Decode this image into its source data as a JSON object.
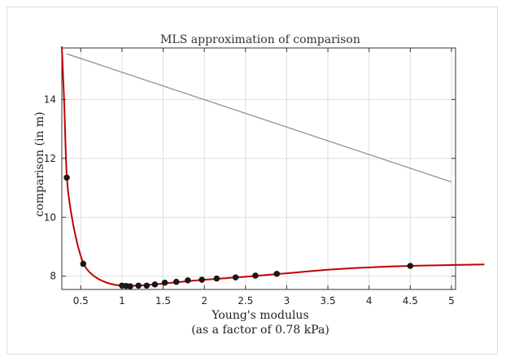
{
  "chart_data": {
    "type": "line",
    "title": "MLS approximation of comparison",
    "xlabel": "Young's modulus",
    "xlabel_line2": "(as a factor of 0.78 kPa)",
    "ylabel": "comparison (in m)",
    "xlim": [
      0.27,
      5.05
    ],
    "ylim": [
      7.55,
      15.75
    ],
    "xticks": [
      0.5,
      1,
      1.5,
      2,
      2.5,
      3,
      3.5,
      4,
      4.5,
      5
    ],
    "xtick_labels": [
      "0.5",
      "1",
      "1.5",
      "2",
      "2.5",
      "3",
      "3.5",
      "4",
      "4.5",
      "5"
    ],
    "yticks": [
      8,
      10,
      12,
      14
    ],
    "ytick_labels": [
      "8",
      "10",
      "12",
      "14"
    ],
    "grid": true,
    "series": [
      {
        "type": "line",
        "color": "#8a8a8a",
        "x": [
          0.33,
          5.0
        ],
        "y": [
          15.55,
          11.2
        ]
      },
      {
        "type": "line",
        "color": "#c00000",
        "x": [
          0.27,
          0.3,
          0.33,
          0.38,
          0.45,
          0.53,
          0.62,
          0.72,
          0.85,
          1.0,
          1.2,
          1.5,
          2.0,
          2.5,
          3.0,
          3.5,
          4.0,
          4.5,
          5.0,
          5.4
        ],
        "y": [
          15.8,
          13.8,
          11.4,
          10.2,
          9.2,
          8.45,
          8.1,
          7.9,
          7.75,
          7.68,
          7.68,
          7.75,
          7.88,
          7.98,
          8.1,
          8.22,
          8.3,
          8.35,
          8.38,
          8.4
        ]
      },
      {
        "type": "scatter",
        "color": "#1a1a1a",
        "x": [
          0.33,
          0.53,
          1.0,
          1.05,
          1.1,
          1.2,
          1.3,
          1.4,
          1.52,
          1.66,
          1.8,
          1.97,
          2.15,
          2.38,
          2.62,
          2.88,
          4.5
        ],
        "y": [
          11.35,
          8.42,
          7.68,
          7.67,
          7.66,
          7.68,
          7.68,
          7.72,
          7.78,
          7.81,
          7.86,
          7.88,
          7.92,
          7.96,
          8.02,
          8.08,
          8.35
        ]
      }
    ]
  }
}
